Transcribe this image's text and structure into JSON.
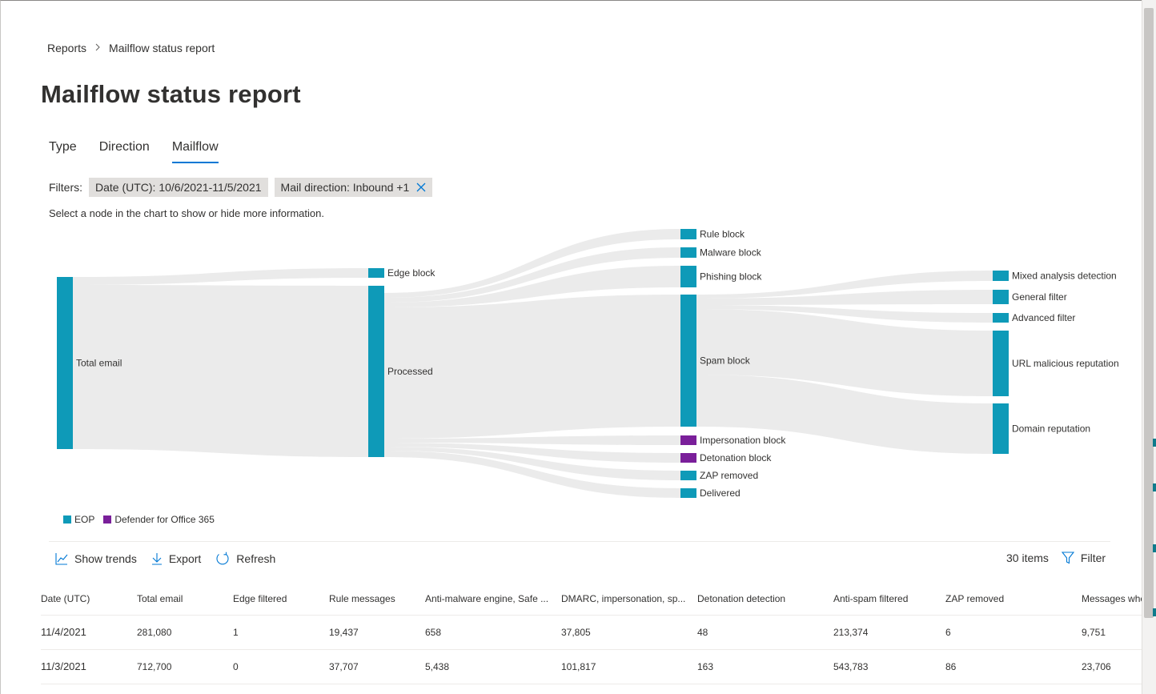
{
  "breadcrumb": {
    "root": "Reports",
    "current": "Mailflow status report"
  },
  "page": {
    "title": "Mailflow status report"
  },
  "tabs": [
    {
      "label": "Type"
    },
    {
      "label": "Direction"
    },
    {
      "label": "Mailflow"
    }
  ],
  "active_tab": "Mailflow",
  "filters": {
    "label": "Filters:",
    "date": {
      "key": "Date (UTC):",
      "value": "10/6/2021-11/5/2021"
    },
    "direction": {
      "key": "Mail direction:",
      "value": "Inbound +1"
    }
  },
  "hint": "Select a node in the chart to show or hide more information.",
  "colors": {
    "eop": "#0e9ab8",
    "defender": "#7a1f9a",
    "link": "#ebebeb",
    "accent": "#0078d4"
  },
  "legend": {
    "eop": "EOP",
    "defender": "Defender for Office 365"
  },
  "sankey": {
    "nodes": [
      {
        "id": "total",
        "label": "Total email",
        "type": "eop"
      },
      {
        "id": "edge",
        "label": "Edge block",
        "type": "eop"
      },
      {
        "id": "processed",
        "label": "Processed",
        "type": "eop"
      },
      {
        "id": "rule",
        "label": "Rule block",
        "type": "eop"
      },
      {
        "id": "malware",
        "label": "Malware block",
        "type": "eop"
      },
      {
        "id": "phish",
        "label": "Phishing block",
        "type": "eop"
      },
      {
        "id": "spam",
        "label": "Spam block",
        "type": "eop"
      },
      {
        "id": "imperson",
        "label": "Impersonation block",
        "type": "defender"
      },
      {
        "id": "deton",
        "label": "Detonation block",
        "type": "defender"
      },
      {
        "id": "zap",
        "label": "ZAP removed",
        "type": "eop"
      },
      {
        "id": "delivered",
        "label": "Delivered",
        "type": "eop"
      },
      {
        "id": "mixed",
        "label": "Mixed analysis detection",
        "type": "eop"
      },
      {
        "id": "general",
        "label": "General filter",
        "type": "eop"
      },
      {
        "id": "advanced",
        "label": "Advanced filter",
        "type": "eop"
      },
      {
        "id": "url",
        "label": "URL malicious reputation",
        "type": "eop"
      },
      {
        "id": "domain",
        "label": "Domain reputation",
        "type": "eop"
      }
    ]
  },
  "commands": {
    "show_trends": "Show trends",
    "export": "Export",
    "refresh": "Refresh",
    "items": "30 items",
    "filter": "Filter"
  },
  "table": {
    "columns": [
      "Date (UTC)",
      "Total email",
      "Edge filtered",
      "Rule messages",
      "Anti-malware engine, Safe ...",
      "DMARC, impersonation, sp...",
      "Detonation detection",
      "Anti-spam filtered",
      "ZAP removed",
      "Messages whe"
    ],
    "rows": [
      [
        "11/4/2021",
        "281,080",
        "1",
        "19,437",
        "658",
        "37,805",
        "48",
        "213,374",
        "6",
        "9,751"
      ],
      [
        "11/3/2021",
        "712,700",
        "0",
        "37,707",
        "5,438",
        "101,817",
        "163",
        "543,783",
        "86",
        "23,706"
      ]
    ]
  }
}
